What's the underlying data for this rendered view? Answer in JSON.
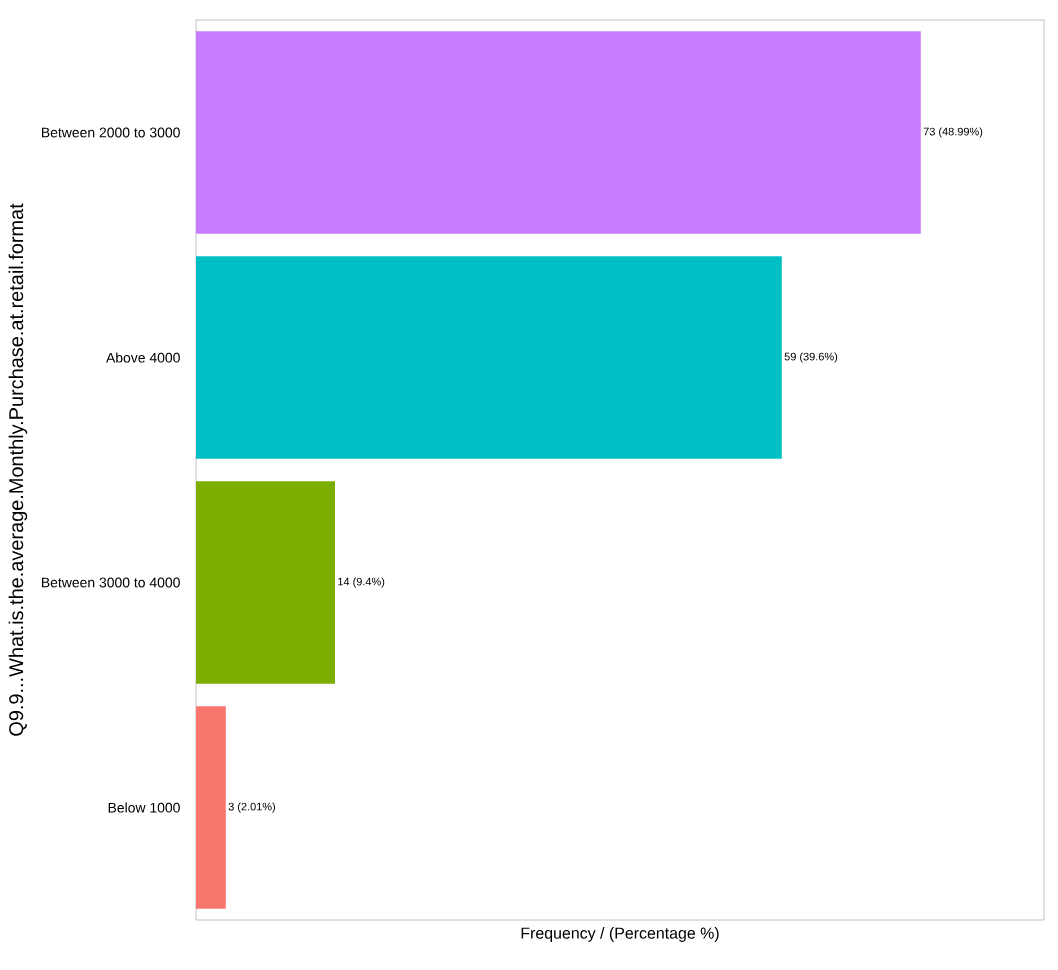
{
  "chart_data": {
    "type": "bar",
    "orientation": "horizontal",
    "xlabel": "Frequency / (Percentage %)",
    "ylabel": "Q9.9...What.is.the.average.Monthly.Purchase.at.retail.format",
    "categories": [
      "Between 2000 to 3000",
      "Above 4000",
      "Between 3000 to 4000",
      "Below 1000"
    ],
    "values": [
      73,
      59,
      14,
      3
    ],
    "colors": [
      "#c77cff",
      "#00bfc4",
      "#7cae00",
      "#f8766d"
    ],
    "value_labels": [
      "73 (48.99%)",
      "59 (39.6%)",
      "14 (9.4%)",
      "3 (2.01%)"
    ],
    "tick_labels": "y"
  }
}
